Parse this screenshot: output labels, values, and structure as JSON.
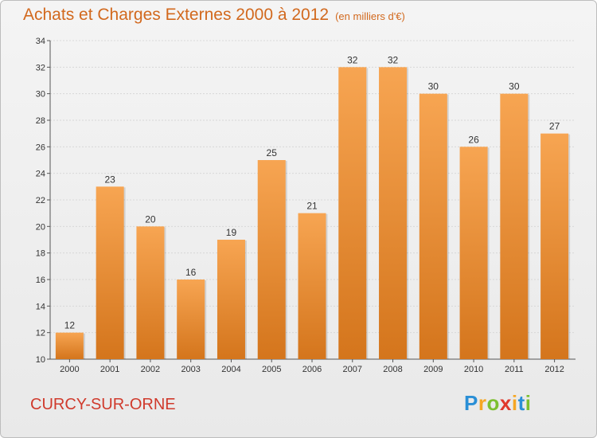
{
  "chart_data": {
    "type": "bar",
    "title": "Achats et Charges Externes 2000 à 2012",
    "subtitle": "(en milliers d'€)",
    "categories": [
      "2000",
      "2001",
      "2002",
      "2003",
      "2004",
      "2005",
      "2006",
      "2007",
      "2008",
      "2009",
      "2010",
      "2011",
      "2012"
    ],
    "values": [
      12,
      23,
      20,
      16,
      19,
      25,
      21,
      32,
      32,
      30,
      26,
      30,
      27
    ],
    "ylim": [
      10,
      34
    ],
    "yticks": [
      10,
      12,
      14,
      16,
      18,
      20,
      22,
      24,
      26,
      28,
      30,
      32,
      34
    ],
    "xlabel": "",
    "ylabel": "",
    "grid": true,
    "legend": "none",
    "bar_color_top": "#f7a552",
    "bar_color_bottom": "#d4751c"
  },
  "footer": {
    "place_name": "CURCY-SUR-ORNE",
    "logo": {
      "letters": [
        "P",
        "r",
        "o",
        "x",
        "i",
        "t",
        "i"
      ],
      "colors": [
        "#2a8fd6",
        "#f5a623",
        "#7cbf2f",
        "#e0382b",
        "#f5a623",
        "#2a8fd6",
        "#7cbf2f"
      ]
    }
  }
}
